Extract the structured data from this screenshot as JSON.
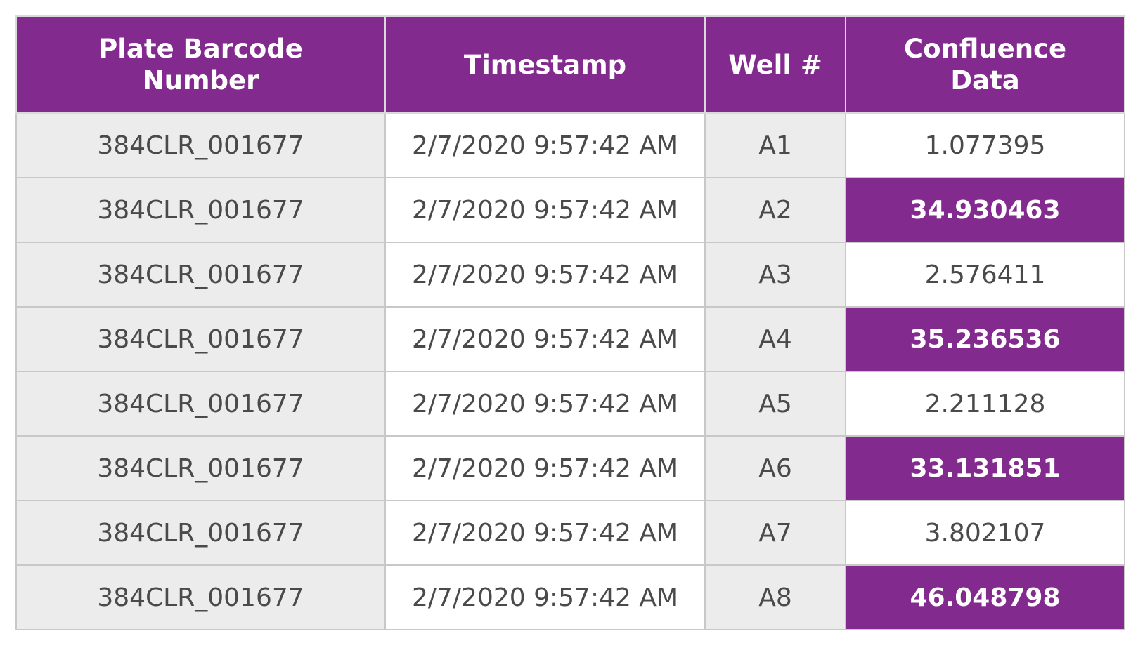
{
  "table": {
    "columns": [
      {
        "lines": [
          "Plate Barcode",
          "Number"
        ]
      },
      {
        "lines": [
          "Timestamp"
        ]
      },
      {
        "lines": [
          "Well #"
        ]
      },
      {
        "lines": [
          "Confluence",
          "Data"
        ]
      }
    ],
    "rows": [
      {
        "barcode": "384CLR_001677",
        "timestamp": "2/7/2020 9:57:42 AM",
        "well": "A1",
        "confluence": "1.077395",
        "highlighted": false
      },
      {
        "barcode": "384CLR_001677",
        "timestamp": "2/7/2020 9:57:42 AM",
        "well": "A2",
        "confluence": "34.930463",
        "highlighted": true
      },
      {
        "barcode": "384CLR_001677",
        "timestamp": "2/7/2020 9:57:42 AM",
        "well": "A3",
        "confluence": "2.576411",
        "highlighted": false
      },
      {
        "barcode": "384CLR_001677",
        "timestamp": "2/7/2020 9:57:42 AM",
        "well": "A4",
        "confluence": "35.236536",
        "highlighted": true
      },
      {
        "barcode": "384CLR_001677",
        "timestamp": "2/7/2020 9:57:42 AM",
        "well": "A5",
        "confluence": "2.211128",
        "highlighted": false
      },
      {
        "barcode": "384CLR_001677",
        "timestamp": "2/7/2020 9:57:42 AM",
        "well": "A6",
        "confluence": "33.131851",
        "highlighted": true
      },
      {
        "barcode": "384CLR_001677",
        "timestamp": "2/7/2020 9:57:42 AM",
        "well": "A7",
        "confluence": "3.802107",
        "highlighted": false
      },
      {
        "barcode": "384CLR_001677",
        "timestamp": "2/7/2020 9:57:42 AM",
        "well": "A8",
        "confluence": "46.048798",
        "highlighted": true
      }
    ]
  },
  "colors": {
    "header_bg": "#832a8f",
    "header_text": "#ffffff",
    "highlight_bg": "#832a8f",
    "grey_cell_bg": "#ececec",
    "body_text": "#4a4a4a",
    "border": "#c8c8c8"
  }
}
